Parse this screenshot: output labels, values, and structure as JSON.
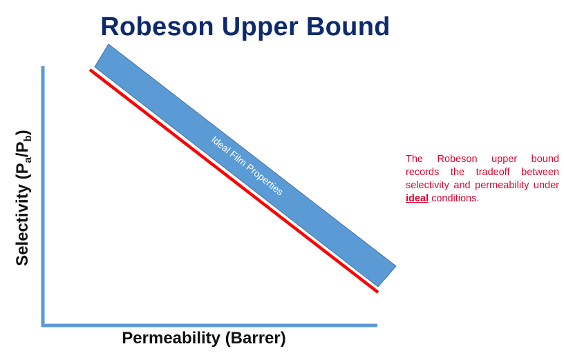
{
  "title": "Robeson Upper Bound",
  "axes": {
    "x_label": "Permeability (Barrer)",
    "y_label_prefix": "Selectivity (P",
    "y_label_sub_a": "a",
    "y_label_mid": "/P",
    "y_label_sub_b": "b",
    "y_label_suffix": ")"
  },
  "band": {
    "label": "Ideal Film Properties",
    "color": "#5b9bd5"
  },
  "upper_bound_line_color": "#ff0000",
  "axis_color": "#5b9bd5",
  "note": {
    "before": "The Robeson upper bound records the tradeoff between selectivity and permeability under ",
    "emphasis": "ideal",
    "after": " conditions."
  }
}
